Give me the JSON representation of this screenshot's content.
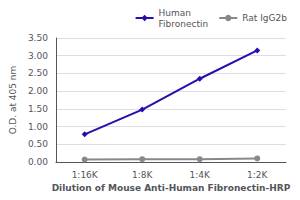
{
  "chart_data": {
    "type": "line",
    "xlabel": "Dilution of Mouse Anti-Human Fibronectin-HRP",
    "ylabel": "O.D. at 405 nm",
    "categories": [
      "1:16K",
      "1:8K",
      "1:4K",
      "1:2K"
    ],
    "series": [
      {
        "name": "Human\nFibronectin",
        "color": "#2a0cac",
        "marker": "diamond",
        "values": [
          0.78,
          1.48,
          2.35,
          3.15
        ]
      },
      {
        "name": "Rat IgG2b",
        "color": "#888888",
        "marker": "circle",
        "values": [
          0.07,
          0.08,
          0.08,
          0.1
        ]
      }
    ],
    "ylim": [
      0.0,
      3.5
    ],
    "yticks": [
      {
        "value": 0.0,
        "label": "0.00"
      },
      {
        "value": 0.5,
        "label": "0.50"
      },
      {
        "value": 1.0,
        "label": "1.00"
      },
      {
        "value": 1.5,
        "label": "1.50"
      },
      {
        "value": 2.0,
        "label": "2.00"
      },
      {
        "value": 2.5,
        "label": "2.50"
      },
      {
        "value": 3.0,
        "label": "3.00"
      },
      {
        "value": 3.5,
        "label": "3.50"
      }
    ],
    "grid": true,
    "legend": "upper right"
  }
}
